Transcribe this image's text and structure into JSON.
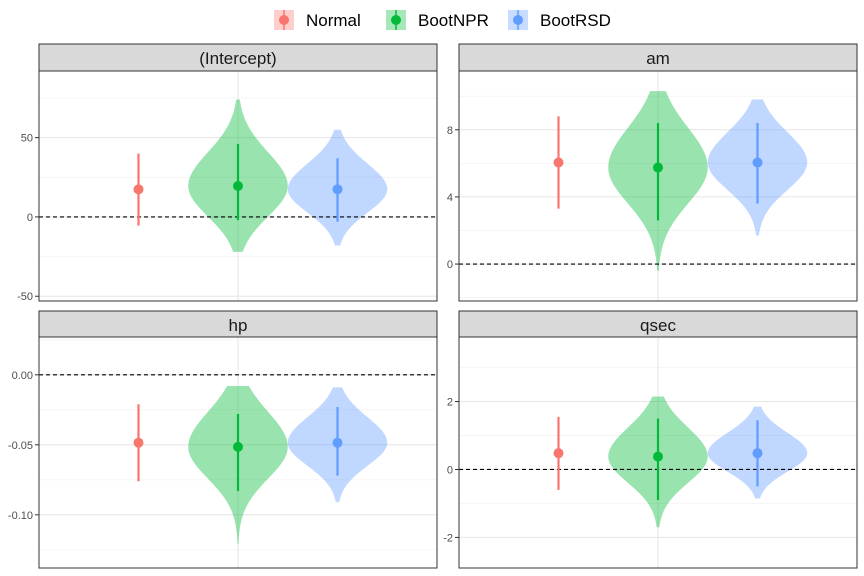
{
  "chart_data": {
    "type": "violin",
    "legend": {
      "position": "top",
      "entries": [
        {
          "name": "Normal",
          "color": "#F8766D"
        },
        {
          "name": "BootNPR",
          "color": "#00BA38"
        },
        {
          "name": "BootRSD",
          "color": "#619CFF"
        }
      ]
    },
    "grid": true,
    "reference_line": 0,
    "panels": [
      {
        "title": "(Intercept)",
        "ylim": [
          -53,
          92
        ],
        "yticks": [
          -50,
          0,
          50
        ],
        "ytick_labels": [
          "-50",
          "0",
          "50"
        ],
        "series": [
          {
            "name": "Normal",
            "estimate": 17.4,
            "lower": -5.5,
            "upper": 40
          },
          {
            "name": "BootNPR",
            "estimate": 19.5,
            "lower": -2,
            "upper": 46,
            "violin": {
              "ymin": -22,
              "ymax": 74
            }
          },
          {
            "name": "BootRSD",
            "estimate": 17.4,
            "lower": -3,
            "upper": 37,
            "violin": {
              "ymin": -18,
              "ymax": 55
            }
          }
        ]
      },
      {
        "title": "am",
        "ylim": [
          -2.2,
          11.5
        ],
        "yticks": [
          0,
          4,
          8
        ],
        "ytick_labels": [
          "0",
          "4",
          "8"
        ],
        "series": [
          {
            "name": "Normal",
            "estimate": 6.05,
            "lower": 3.3,
            "upper": 8.8
          },
          {
            "name": "BootNPR",
            "estimate": 5.75,
            "lower": 2.6,
            "upper": 8.4,
            "violin": {
              "ymin": -0.4,
              "ymax": 10.3
            }
          },
          {
            "name": "BootRSD",
            "estimate": 6.05,
            "lower": 3.6,
            "upper": 8.4,
            "violin": {
              "ymin": 1.7,
              "ymax": 9.8
            }
          }
        ]
      },
      {
        "title": "hp",
        "ylim": [
          -0.138,
          0.027
        ],
        "yticks": [
          -0.1,
          -0.05,
          0.0
        ],
        "ytick_labels": [
          "-0.10",
          "-0.05",
          "0.00"
        ],
        "series": [
          {
            "name": "Normal",
            "estimate": -0.0485,
            "lower": -0.076,
            "upper": -0.021
          },
          {
            "name": "BootNPR",
            "estimate": -0.0515,
            "lower": -0.083,
            "upper": -0.028,
            "violin": {
              "ymin": -0.121,
              "ymax": -0.008
            }
          },
          {
            "name": "BootRSD",
            "estimate": -0.0485,
            "lower": -0.072,
            "upper": -0.023,
            "violin": {
              "ymin": -0.091,
              "ymax": -0.009
            }
          }
        ]
      },
      {
        "title": "qsec",
        "ylim": [
          -2.9,
          3.9
        ],
        "yticks": [
          -2,
          0,
          2
        ],
        "ytick_labels": [
          "-2",
          "0",
          "2"
        ],
        "series": [
          {
            "name": "Normal",
            "estimate": 0.48,
            "lower": -0.6,
            "upper": 1.55
          },
          {
            "name": "BootNPR",
            "estimate": 0.38,
            "lower": -0.9,
            "upper": 1.5,
            "violin": {
              "ymin": -1.7,
              "ymax": 2.15
            }
          },
          {
            "name": "BootRSD",
            "estimate": 0.48,
            "lower": -0.5,
            "upper": 1.45,
            "violin": {
              "ymin": -0.85,
              "ymax": 1.85
            }
          }
        ]
      }
    ]
  }
}
